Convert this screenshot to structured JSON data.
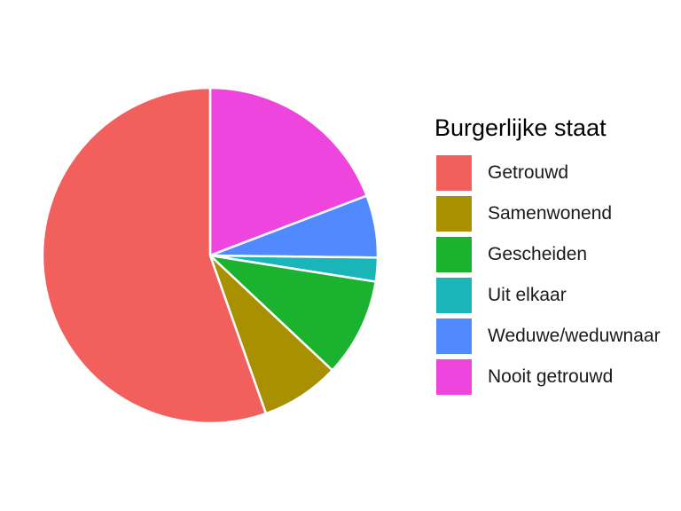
{
  "chart_data": {
    "type": "pie",
    "title": "",
    "legend_title": "Burgerlijke staat",
    "legend_position": "right",
    "categories": [
      "Getrouwd",
      "Samenwonend",
      "Gescheiden",
      "Uit elkaar",
      "Weduwe/weduwnaar",
      "Nooit getrouwd"
    ],
    "values": [
      55.4,
      7.6,
      9.5,
      2.3,
      6.0,
      19.2
    ],
    "colors": [
      "#F2605D",
      "#A89000",
      "#1AB22E",
      "#1AB5B8",
      "#508AFE",
      "#ED45DD"
    ],
    "slice_order_note": "clockwise from 12 o'clock: Nooit getrouwd, Weduwe/weduwnaar, Uit elkaar, Gescheiden, Samenwonend, Getrouwd"
  }
}
